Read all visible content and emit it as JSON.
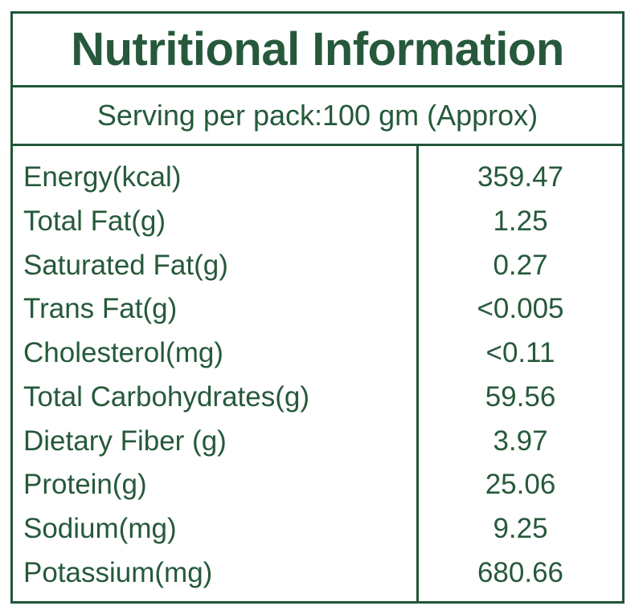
{
  "label": {
    "title": "Nutritional Information",
    "serving_line": "Serving per pack:100 gm (Approx)",
    "colors": {
      "text_green": "#26593B",
      "border_green": "#1F5638",
      "background": "#FFFFFF"
    },
    "rows": [
      {
        "name": "Energy(kcal)",
        "value": "359.47"
      },
      {
        "name": "Total Fat(g)",
        "value": "1.25"
      },
      {
        "name": "Saturated Fat(g)",
        "value": "0.27"
      },
      {
        "name": "Trans Fat(g)",
        "value": "<0.005"
      },
      {
        "name": "Cholesterol(mg)",
        "value": "<0.11"
      },
      {
        "name": "Total Carbohydrates(g)",
        "value": "59.56"
      },
      {
        "name": "Dietary Fiber (g)",
        "value": "3.97"
      },
      {
        "name": "Protein(g)",
        "value": "25.06"
      },
      {
        "name": "Sodium(mg)",
        "value": "9.25"
      },
      {
        "name": "Potassium(mg)",
        "value": "680.66"
      }
    ]
  }
}
